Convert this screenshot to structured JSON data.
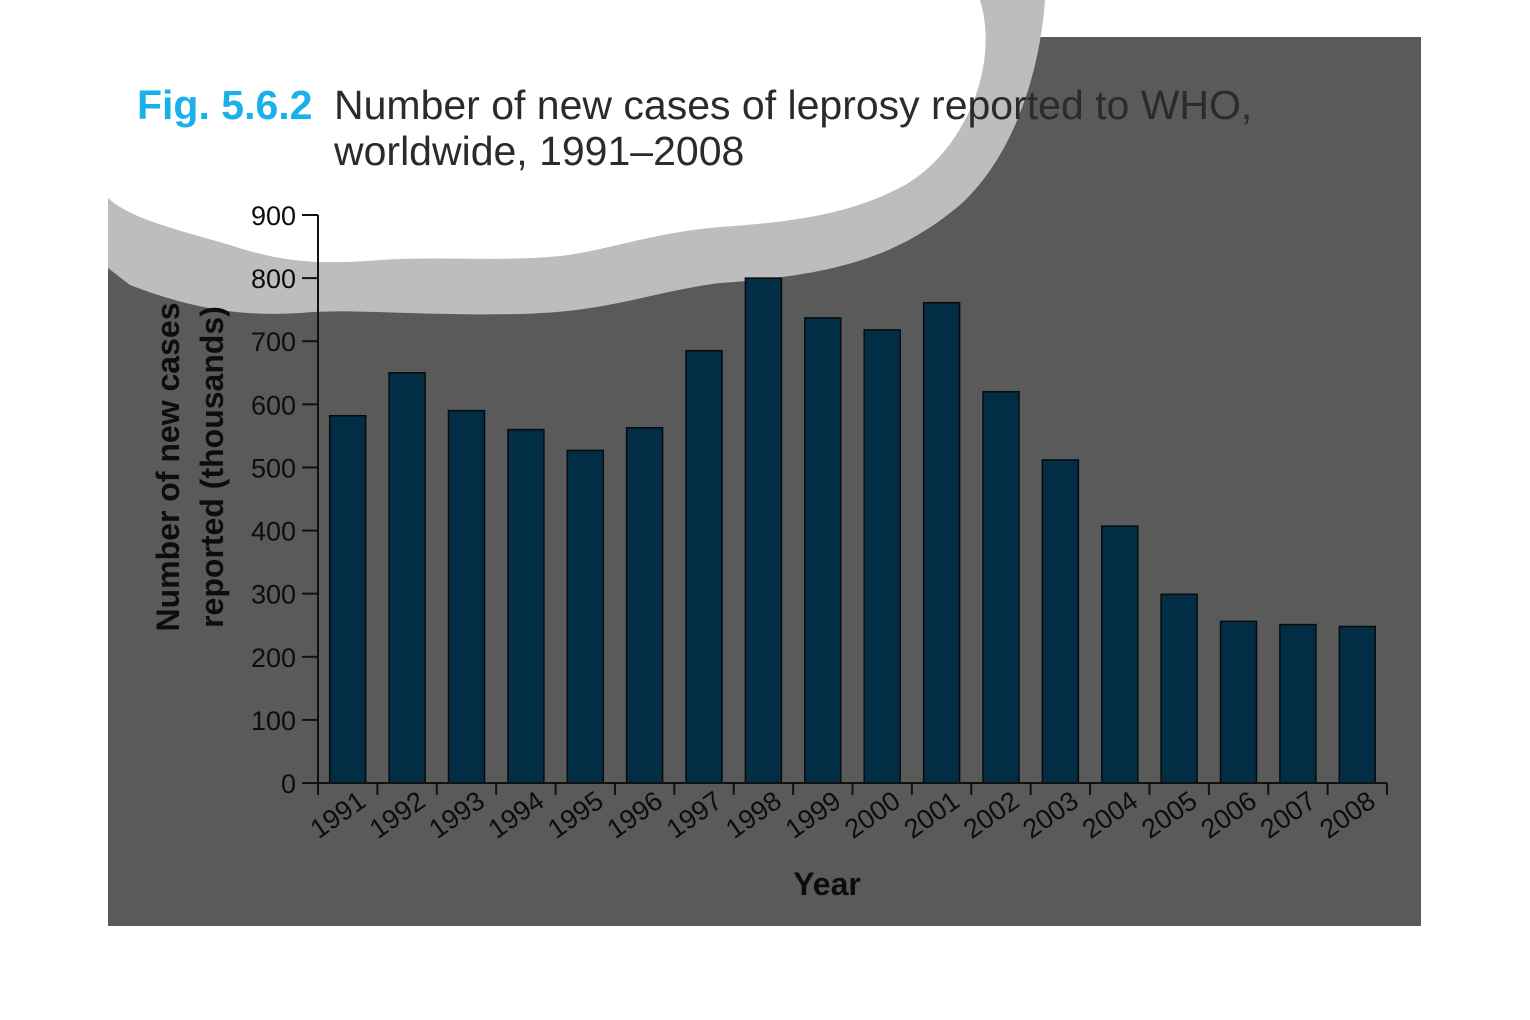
{
  "figure": {
    "label": "Fig. 5.6.2",
    "title_line1": "Number of new cases of leprosy reported to WHO,",
    "title_line2": "worldwide, 1991–2008"
  },
  "colors": {
    "background_dark": "#5a5a5a",
    "page_white": "#ffffff",
    "torn_edge": "#bdbdbd",
    "bar_fill": "#012d45",
    "bar_stroke": "#0a0a0a",
    "axis": "#111111",
    "figure_label": "#1ab0ea",
    "title_text": "#2b2b2b"
  },
  "chart_data": {
    "type": "bar",
    "title": "Number of new cases of leprosy reported to WHO, worldwide, 1991–2008",
    "xlabel": "Year",
    "ylabel_line1": "Number of new cases",
    "ylabel_line2": "reported (thousands)",
    "ylim": [
      0,
      900
    ],
    "yticks": [
      "0",
      "100",
      "200",
      "300",
      "400",
      "500",
      "600",
      "700",
      "800",
      "900"
    ],
    "categories": [
      "1991",
      "1992",
      "1993",
      "1994",
      "1995",
      "1996",
      "1997",
      "1998",
      "1999",
      "2000",
      "2001",
      "2002",
      "2003",
      "2004",
      "2005",
      "2006",
      "2007",
      "2008"
    ],
    "values": [
      582,
      650,
      590,
      560,
      527,
      563,
      685,
      800,
      737,
      718,
      761,
      620,
      512,
      407,
      299,
      256,
      251,
      248
    ],
    "grid": false,
    "legend": "none"
  }
}
